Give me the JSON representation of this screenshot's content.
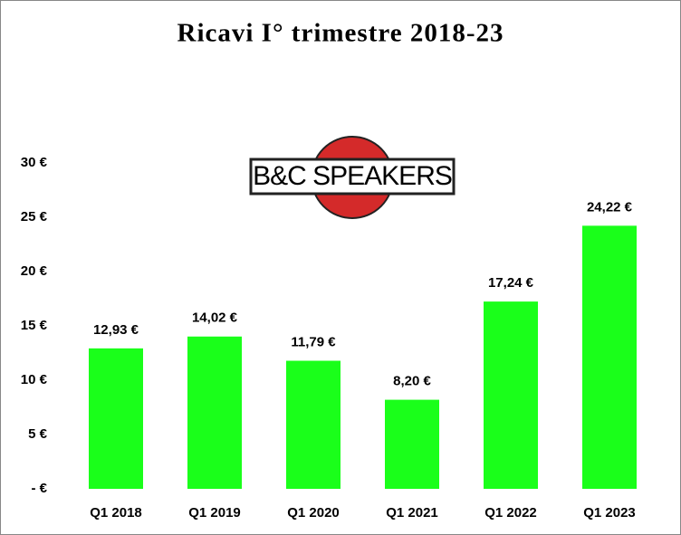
{
  "chart_data": {
    "type": "bar",
    "title": "Ricavi I° trimestre 2018-23",
    "annotation": "B&C SPEAKERS",
    "categories": [
      "Q1 2018",
      "Q1 2019",
      "Q1 2020",
      "Q1 2021",
      "Q1 2022",
      "Q1 2023"
    ],
    "values": [
      12.93,
      14.02,
      11.79,
      8.2,
      17.24,
      24.22
    ],
    "value_labels": [
      "12,93 €",
      "14,02 €",
      "11,79 €",
      "8,20 €",
      "17,24 €",
      "24,22 €"
    ],
    "color": "#1aff1a",
    "ylim": [
      0,
      30
    ],
    "yticks": [
      {
        "value": 0,
        "label": "- €"
      },
      {
        "value": 5,
        "label": "5 €"
      },
      {
        "value": 10,
        "label": "10 €"
      },
      {
        "value": 15,
        "label": "15 €"
      },
      {
        "value": 20,
        "label": "20 €"
      },
      {
        "value": 25,
        "label": "25 €"
      },
      {
        "value": 30,
        "label": "30 €"
      }
    ],
    "grid": false
  }
}
